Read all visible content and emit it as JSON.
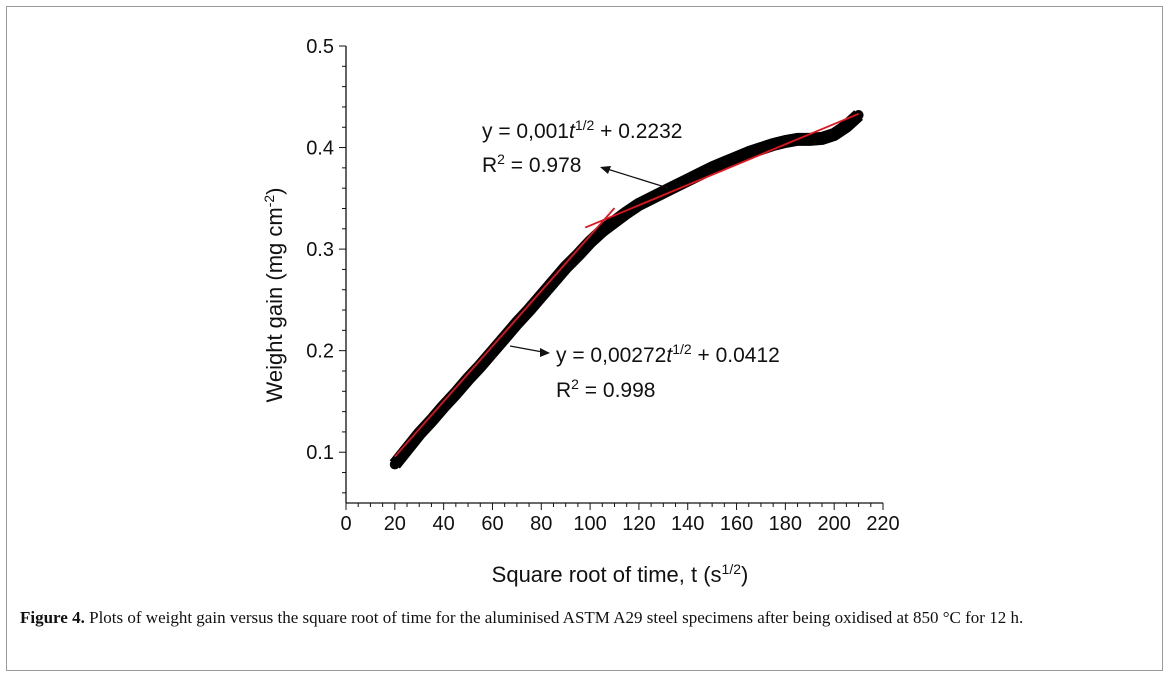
{
  "chart_data": {
    "type": "scatter",
    "title": "",
    "xlabel": "Square root of time, t (s",
    "xlabel_sup": "1/2",
    "xlabel_tail": ")",
    "ylabel": "Weight gain (mg cm",
    "ylabel_sup": "-2",
    "ylabel_tail": ")",
    "xlim": [
      0,
      220
    ],
    "ylim": [
      0.05,
      0.5
    ],
    "x_ticks": [
      "0",
      "20",
      "40",
      "60",
      "80",
      "100",
      "120",
      "140",
      "160",
      "180",
      "200",
      "220"
    ],
    "y_ticks": [
      "0.1",
      "0.2",
      "0.3",
      "0.4",
      "0.5"
    ],
    "grid": false,
    "series": [
      {
        "points": [
          [
            20,
            0.088
          ],
          [
            25,
            0.103
          ],
          [
            30,
            0.118
          ],
          [
            35,
            0.131
          ],
          [
            40,
            0.145
          ],
          [
            45,
            0.158
          ],
          [
            50,
            0.172
          ],
          [
            55,
            0.185
          ],
          [
            60,
            0.199
          ],
          [
            65,
            0.213
          ],
          [
            70,
            0.227
          ],
          [
            75,
            0.24
          ],
          [
            80,
            0.254
          ],
          [
            85,
            0.268
          ],
          [
            90,
            0.282
          ],
          [
            95,
            0.294
          ],
          [
            100,
            0.307
          ],
          [
            105,
            0.318
          ],
          [
            110,
            0.327
          ],
          [
            115,
            0.336
          ],
          [
            120,
            0.344
          ],
          [
            125,
            0.35
          ],
          [
            130,
            0.356
          ],
          [
            135,
            0.362
          ],
          [
            140,
            0.368
          ],
          [
            145,
            0.374
          ],
          [
            150,
            0.38
          ],
          [
            155,
            0.385
          ],
          [
            160,
            0.39
          ],
          [
            165,
            0.395
          ],
          [
            170,
            0.399
          ],
          [
            175,
            0.403
          ],
          [
            180,
            0.406
          ],
          [
            185,
            0.408
          ],
          [
            190,
            0.408
          ],
          [
            195,
            0.409
          ],
          [
            200,
            0.413
          ],
          [
            205,
            0.421
          ],
          [
            210,
            0.432
          ]
        ]
      }
    ],
    "fits": [
      {
        "eq_prefix": "y = 0,00272",
        "eq_var": "t",
        "eq_sup": "1/2",
        "eq_suffix": " + 0.0412",
        "r2_label": "R",
        "r2_sup": "2",
        "r2_value": " = 0.998",
        "slope": 0.00272,
        "intercept": 0.0412,
        "x_range": [
          20,
          110
        ]
      },
      {
        "eq_prefix": "y = 0,001",
        "eq_var": "t",
        "eq_sup": "1/2",
        "eq_suffix": " + 0.2232",
        "r2_label": "R",
        "r2_sup": "2",
        "r2_value": " = 0.978",
        "slope": 0.001,
        "intercept": 0.2232,
        "x_range": [
          98,
          210
        ]
      }
    ],
    "colors": {
      "data": "#000000",
      "fit": "#e4141e"
    }
  },
  "caption": {
    "label": "Figure 4.",
    "text": " Plots of weight gain versus the square root of time for the aluminised ASTM A29 steel specimens after being oxidised at 850 °C for 12 h."
  }
}
